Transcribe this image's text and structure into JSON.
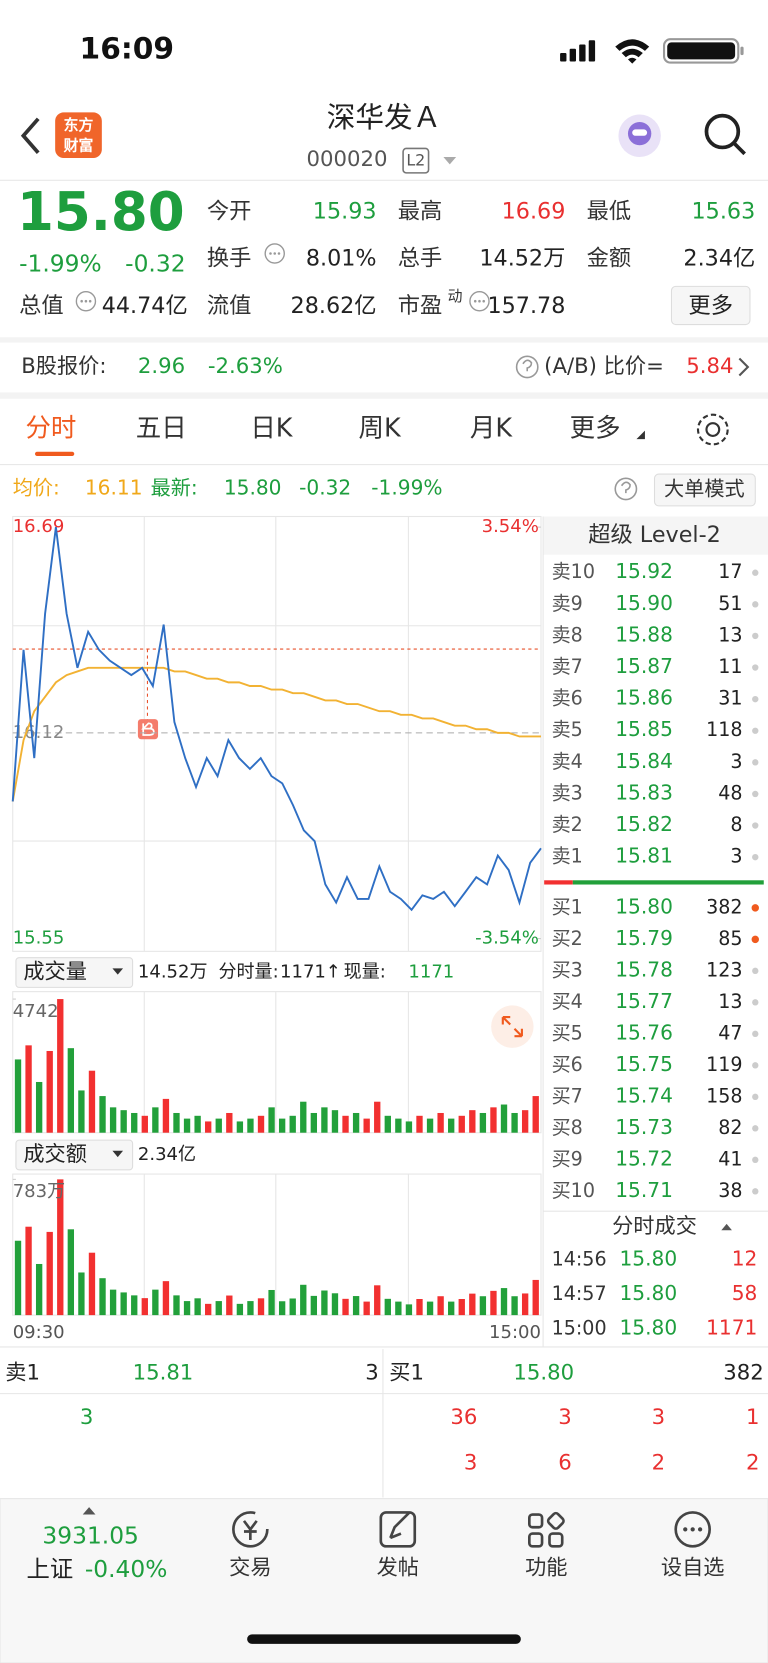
{
  "status": {
    "time": "16:09"
  },
  "header": {
    "logo": [
      "东方",
      "财富"
    ],
    "title": "深华发Ａ",
    "code": "000020",
    "badge": "L2"
  },
  "quote": {
    "price": "15.80",
    "change_pct": "-1.99%",
    "change": "-0.32",
    "fields": [
      {
        "label": "今开",
        "value": "15.93"
      },
      {
        "label": "最高",
        "value": "16.69"
      },
      {
        "label": "最低",
        "value": "15.63"
      },
      {
        "label": "换手",
        "value": "8.01%"
      },
      {
        "label": "总手",
        "value": "14.52万"
      },
      {
        "label": "金额",
        "value": "2.34亿"
      },
      {
        "label": "总值",
        "value": "44.74亿"
      },
      {
        "label": "流值",
        "value": "28.62亿"
      },
      {
        "label": "市盈",
        "sup": "动",
        "value": "157.78"
      }
    ],
    "more_button": "更多"
  },
  "b_share": {
    "label": "B股报价:",
    "price": "2.96",
    "change_pct": "-2.63%",
    "ratio_label": "(A/B) 比价=",
    "ratio": "5.84"
  },
  "tabs": [
    "分时",
    "五日",
    "日K",
    "周K",
    "月K",
    "更多"
  ],
  "summary": {
    "avg_label": "均价:",
    "avg": "16.11",
    "latest_label": "最新:",
    "latest": "15.80",
    "change": "-0.32",
    "change_pct": "-1.99%",
    "mode_button": "大单模式"
  },
  "intraday": {
    "type": "line",
    "ylim": [
      15.55,
      16.69
    ],
    "yticks": [
      15.55,
      16.12,
      16.69
    ],
    "y2lim": [
      -3.54,
      3.54
    ],
    "y2ticks": [
      {
        "value": -3.54,
        "label": "-3.54%"
      },
      {
        "value": 3.54,
        "label": "3.54%"
      }
    ],
    "x_labels": [
      "09:30",
      "15:00"
    ],
    "series": [
      {
        "color": "#2f6fc4",
        "values": [
          15.93,
          16.35,
          16.05,
          16.45,
          16.69,
          16.45,
          16.3,
          16.4,
          16.35,
          16.32,
          16.3,
          16.28,
          16.3,
          16.25,
          16.42,
          16.15,
          16.05,
          15.97,
          16.05,
          16.0,
          16.1,
          16.05,
          16.02,
          16.05,
          16.0,
          15.98,
          15.92,
          15.85,
          15.82,
          15.7,
          15.65,
          15.72,
          15.66,
          15.66,
          15.75,
          15.68,
          15.66,
          15.63,
          15.67,
          15.66,
          15.68,
          15.64,
          15.68,
          15.72,
          15.7,
          15.78,
          15.74,
          15.65,
          15.76,
          15.8
        ]
      },
      {
        "color": "#f2b233",
        "values": [
          15.93,
          16.1,
          16.18,
          16.22,
          16.26,
          16.28,
          16.29,
          16.3,
          16.3,
          16.3,
          16.3,
          16.3,
          16.3,
          16.3,
          16.3,
          16.29,
          16.29,
          16.28,
          16.27,
          16.27,
          16.26,
          16.26,
          16.25,
          16.25,
          16.24,
          16.24,
          16.23,
          16.23,
          16.22,
          16.21,
          16.21,
          16.2,
          16.2,
          16.19,
          16.18,
          16.18,
          16.17,
          16.17,
          16.16,
          16.16,
          16.15,
          16.14,
          16.14,
          16.13,
          16.13,
          16.12,
          16.12,
          16.11,
          16.11,
          16.11
        ]
      }
    ]
  },
  "volume": {
    "type": "bar",
    "label": "成交量",
    "total": "14.52万",
    "tick_label": "分时量:",
    "tick_volume": "1171",
    "arrow": "↑",
    "current_label": "现量:",
    "current": "1171",
    "ylim": [
      0,
      4742
    ],
    "yticks": [
      4742
    ],
    "values": [
      2600,
      3100,
      1800,
      2900,
      4742,
      3000,
      1500,
      2200,
      1300,
      900,
      800,
      700,
      600,
      900,
      1200,
      700,
      500,
      600,
      400,
      500,
      700,
      400,
      500,
      600,
      900,
      500,
      600,
      1100,
      700,
      900,
      800,
      600,
      700,
      500,
      1100,
      600,
      500,
      400,
      600,
      500,
      700,
      500,
      600,
      800,
      700,
      900,
      1000,
      700,
      800,
      1300
    ],
    "colors": [
      "#22a03a",
      "#f23030",
      "#22a03a",
      "#f23030",
      "#f23030",
      "#22a03a",
      "#22a03a",
      "#f23030",
      "#22a03a",
      "#22a03a",
      "#22a03a",
      "#22a03a",
      "#f23030",
      "#22a03a",
      "#f23030",
      "#22a03a",
      "#22a03a",
      "#22a03a",
      "#f23030",
      "#22a03a",
      "#f23030",
      "#22a03a",
      "#22a03a",
      "#f23030",
      "#22a03a",
      "#22a03a",
      "#22a03a",
      "#22a03a",
      "#22a03a",
      "#22a03a",
      "#22a03a",
      "#f23030",
      "#22a03a",
      "#f23030",
      "#f23030",
      "#22a03a",
      "#22a03a",
      "#22a03a",
      "#f23030",
      "#22a03a",
      "#f23030",
      "#22a03a",
      "#f23030",
      "#f23030",
      "#22a03a",
      "#f23030",
      "#22a03a",
      "#22a03a",
      "#f23030",
      "#f23030"
    ]
  },
  "amount": {
    "type": "bar",
    "label": "成交额",
    "total": "2.34亿",
    "ylim": [
      0,
      7830000
    ],
    "yticks": [
      {
        "value": 7830000,
        "label": "783万"
      }
    ],
    "values": [
      4290000,
      5100000,
      2950000,
      4800000,
      7830000,
      4950000,
      2460000,
      3600000,
      2130000,
      1470000,
      1310000,
      1140000,
      980000,
      1470000,
      1960000,
      1140000,
      810000,
      970000,
      650000,
      810000,
      1130000,
      650000,
      810000,
      970000,
      1450000,
      800000,
      960000,
      1750000,
      1110000,
      1420000,
      1260000,
      940000,
      1100000,
      780000,
      1720000,
      940000,
      780000,
      620000,
      930000,
      780000,
      1090000,
      780000,
      930000,
      1240000,
      1090000,
      1400000,
      1560000,
      1090000,
      1250000,
      2030000
    ]
  },
  "level2": {
    "title": "超级 Level-2",
    "asks": [
      {
        "label": "卖10",
        "price": "15.92",
        "qty": "17"
      },
      {
        "label": "卖9",
        "price": "15.90",
        "qty": "51"
      },
      {
        "label": "卖8",
        "price": "15.88",
        "qty": "13"
      },
      {
        "label": "卖7",
        "price": "15.87",
        "qty": "11"
      },
      {
        "label": "卖6",
        "price": "15.86",
        "qty": "31"
      },
      {
        "label": "卖5",
        "price": "15.85",
        "qty": "118"
      },
      {
        "label": "卖4",
        "price": "15.84",
        "qty": "3"
      },
      {
        "label": "卖3",
        "price": "15.83",
        "qty": "48"
      },
      {
        "label": "卖2",
        "price": "15.82",
        "qty": "8"
      },
      {
        "label": "卖1",
        "price": "15.81",
        "qty": "3"
      }
    ],
    "bids": [
      {
        "label": "买1",
        "price": "15.80",
        "qty": "382"
      },
      {
        "label": "买2",
        "price": "15.79",
        "qty": "85"
      },
      {
        "label": "买3",
        "price": "15.78",
        "qty": "123"
      },
      {
        "label": "买4",
        "price": "15.77",
        "qty": "13"
      },
      {
        "label": "买5",
        "price": "15.76",
        "qty": "47"
      },
      {
        "label": "买6",
        "price": "15.75",
        "qty": "119"
      },
      {
        "label": "买7",
        "price": "15.74",
        "qty": "158"
      },
      {
        "label": "买8",
        "price": "15.73",
        "qty": "82"
      },
      {
        "label": "买9",
        "price": "15.72",
        "qty": "41"
      },
      {
        "label": "买10",
        "price": "15.71",
        "qty": "38"
      }
    ],
    "trades_title": "分时成交",
    "trades": [
      {
        "time": "14:56",
        "price": "15.80",
        "qty": "12"
      },
      {
        "time": "14:57",
        "price": "15.80",
        "qty": "58"
      },
      {
        "time": "15:00",
        "price": "15.80",
        "qty": "1171"
      }
    ]
  },
  "queue": {
    "sell": {
      "label": "卖1",
      "price": "15.81",
      "qty": "3",
      "orders": [
        "3"
      ]
    },
    "buy": {
      "label": "买1",
      "price": "15.80",
      "qty": "382",
      "orders": [
        "36",
        "3",
        "3",
        "1",
        "3",
        "6",
        "2",
        "2"
      ]
    }
  },
  "footer": {
    "index_value": "3931.05",
    "index_name": "上证",
    "index_change": "-0.40%",
    "nav": [
      "交易",
      "发帖",
      "功能",
      "设自选"
    ]
  }
}
